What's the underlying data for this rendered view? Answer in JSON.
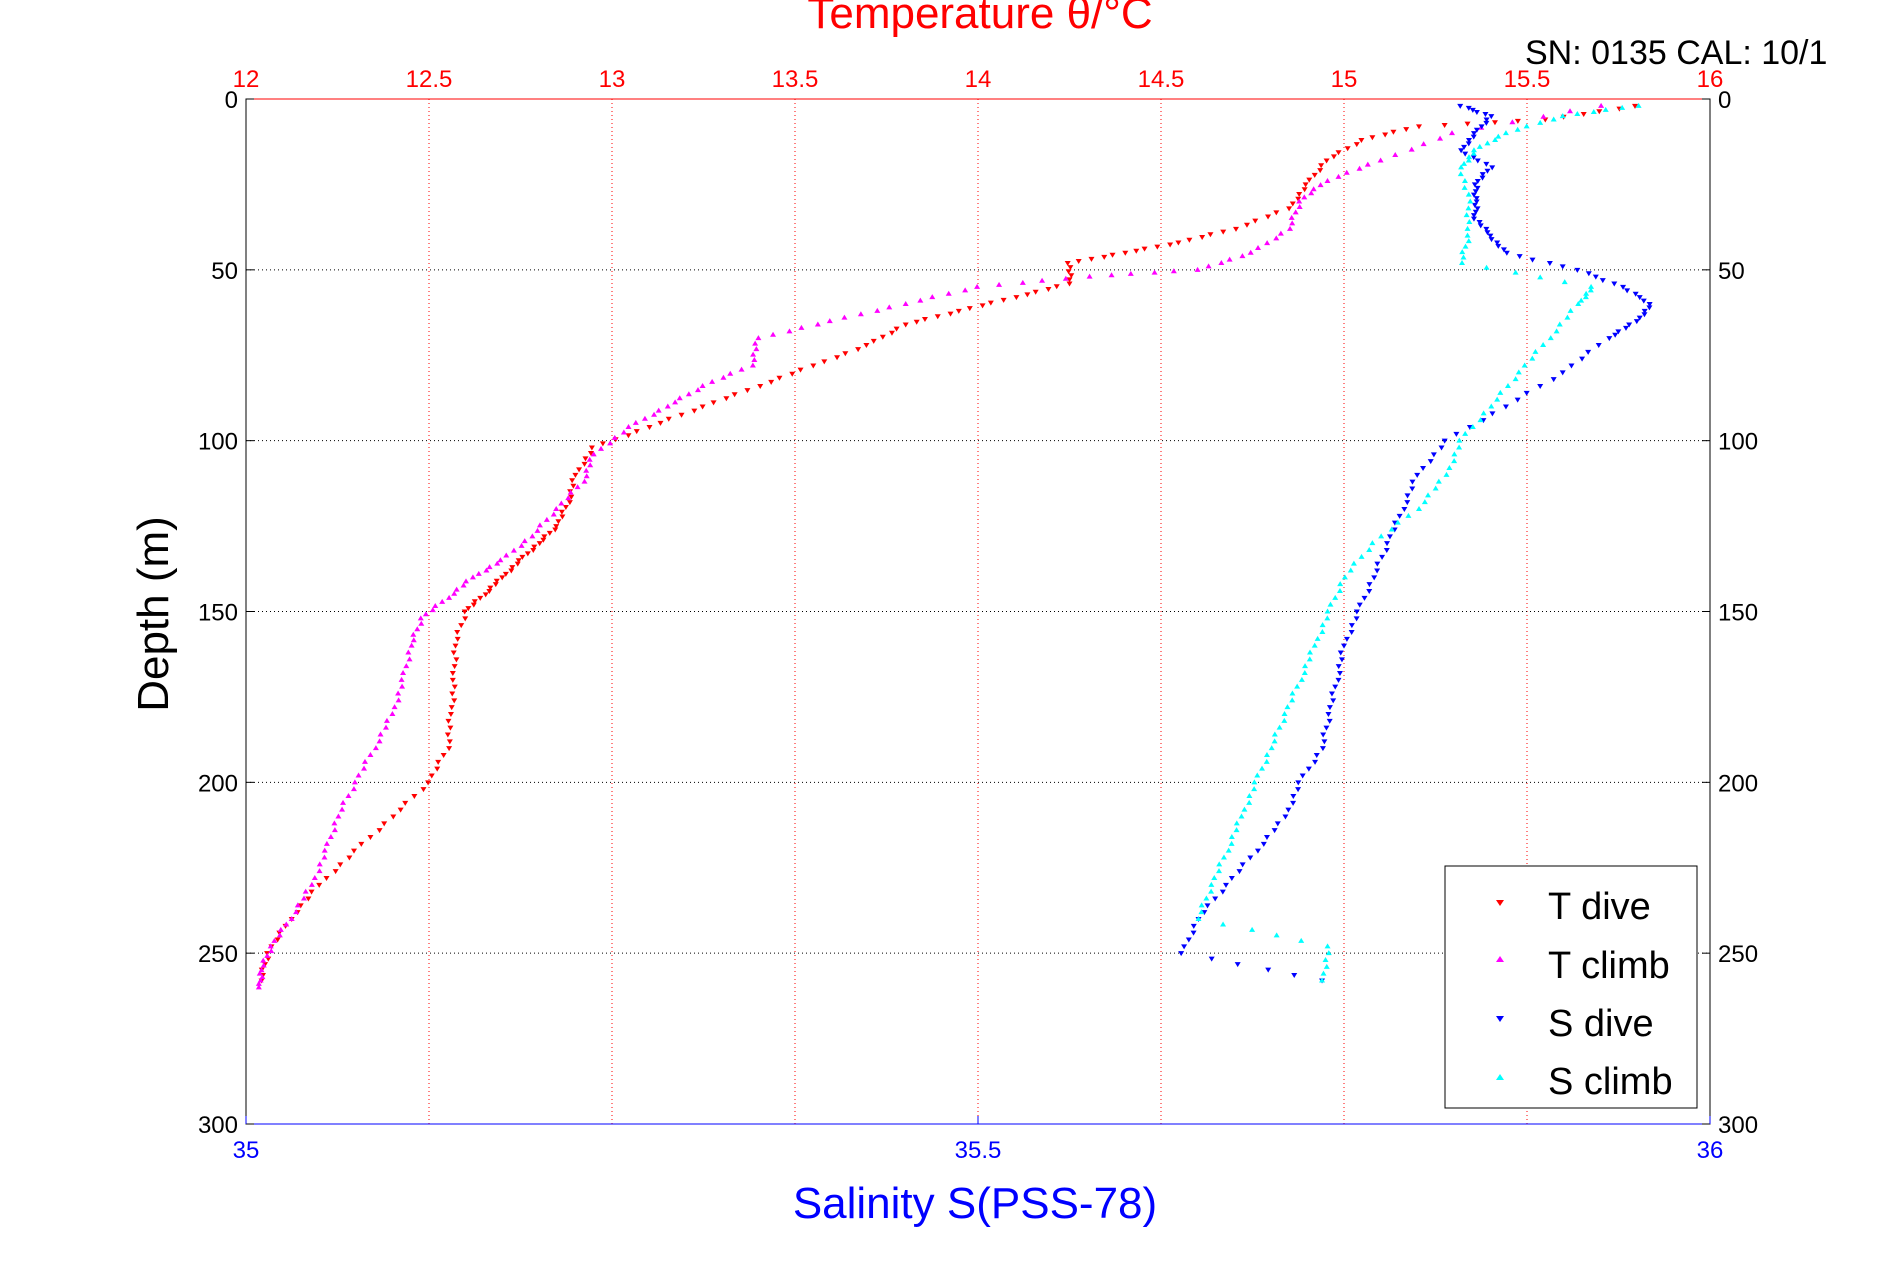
{
  "header": {
    "title": "Temperature θ/°C",
    "serial": "SN: 0135  CAL: 10/1"
  },
  "chart_data": {
    "type": "scatter",
    "title": "Temperature θ/°C",
    "top_axis": {
      "label": "Temperature θ/°C",
      "range": [
        12,
        16
      ],
      "ticks": [
        12,
        12.5,
        13,
        13.5,
        14,
        14.5,
        15,
        15.5,
        16
      ],
      "color": "#ff0000"
    },
    "bottom_axis": {
      "label": "Salinity S(PSS-78)",
      "range": [
        35,
        36
      ],
      "ticks": [
        35,
        35.5,
        36
      ],
      "color": "#0000ff"
    },
    "y_axis": {
      "label": "Depth (m)",
      "range": [
        0,
        300
      ],
      "reversed": true,
      "ticks": [
        0,
        50,
        100,
        150,
        200,
        250,
        300
      ]
    },
    "grid": true,
    "legend_position": "bottom-right",
    "series": [
      {
        "name": "T dive",
        "axis": "temperature",
        "color": "#ff0000",
        "marker": "triangle-down",
        "points": [
          [
            15.8,
            2
          ],
          [
            15.55,
            6
          ],
          [
            15.2,
            8
          ],
          [
            15.05,
            12
          ],
          [
            14.95,
            18
          ],
          [
            14.9,
            25
          ],
          [
            14.85,
            32
          ],
          [
            14.7,
            38
          ],
          [
            14.55,
            42
          ],
          [
            14.4,
            45
          ],
          [
            14.25,
            48
          ],
          [
            14.25,
            54
          ],
          [
            14.1,
            58
          ],
          [
            13.95,
            62
          ],
          [
            13.8,
            66
          ],
          [
            13.7,
            72
          ],
          [
            13.55,
            78
          ],
          [
            13.4,
            84
          ],
          [
            13.25,
            90
          ],
          [
            13.1,
            96
          ],
          [
            12.95,
            102
          ],
          [
            12.9,
            110
          ],
          [
            12.88,
            118
          ],
          [
            12.85,
            125
          ],
          [
            12.8,
            130
          ],
          [
            12.75,
            135
          ],
          [
            12.7,
            140
          ],
          [
            12.65,
            145
          ],
          [
            12.6,
            150
          ],
          [
            12.57,
            160
          ],
          [
            12.57,
            170
          ],
          [
            12.56,
            180
          ],
          [
            12.55,
            190
          ],
          [
            12.5,
            200
          ],
          [
            12.4,
            210
          ],
          [
            12.3,
            220
          ],
          [
            12.2,
            230
          ],
          [
            12.12,
            240
          ],
          [
            12.06,
            250
          ],
          [
            12.04,
            258
          ]
        ]
      },
      {
        "name": "T climb",
        "axis": "temperature",
        "color": "#ff00ff",
        "marker": "triangle-up",
        "points": [
          [
            15.7,
            2
          ],
          [
            15.3,
            10
          ],
          [
            15.1,
            18
          ],
          [
            14.95,
            24
          ],
          [
            14.88,
            30
          ],
          [
            14.85,
            38
          ],
          [
            14.75,
            45
          ],
          [
            14.6,
            50
          ],
          [
            14.3,
            52
          ],
          [
            14.0,
            55
          ],
          [
            13.8,
            60
          ],
          [
            13.6,
            65
          ],
          [
            13.4,
            70
          ],
          [
            13.38,
            78
          ],
          [
            13.25,
            84
          ],
          [
            13.15,
            90
          ],
          [
            13.05,
            96
          ],
          [
            12.95,
            104
          ],
          [
            12.92,
            112
          ],
          [
            12.85,
            120
          ],
          [
            12.78,
            128
          ],
          [
            12.7,
            135
          ],
          [
            12.62,
            140
          ],
          [
            12.55,
            146
          ],
          [
            12.48,
            152
          ],
          [
            12.45,
            160
          ],
          [
            12.43,
            170
          ],
          [
            12.4,
            180
          ],
          [
            12.35,
            190
          ],
          [
            12.3,
            200
          ],
          [
            12.25,
            210
          ],
          [
            12.22,
            220
          ],
          [
            12.18,
            230
          ],
          [
            12.12,
            240
          ],
          [
            12.07,
            248
          ],
          [
            12.04,
            255
          ],
          [
            12.04,
            260
          ]
        ]
      },
      {
        "name": "S dive",
        "axis": "salinity",
        "color": "#0000ff",
        "marker": "triangle-down",
        "points": [
          [
            35.83,
            2
          ],
          [
            35.85,
            5
          ],
          [
            35.84,
            10
          ],
          [
            35.83,
            15
          ],
          [
            35.85,
            20
          ],
          [
            35.84,
            25
          ],
          [
            35.84,
            30
          ],
          [
            35.84,
            35
          ],
          [
            35.85,
            40
          ],
          [
            35.86,
            45
          ],
          [
            35.91,
            50
          ],
          [
            35.94,
            55
          ],
          [
            35.96,
            60
          ],
          [
            35.95,
            65
          ],
          [
            35.93,
            70
          ],
          [
            35.9,
            80
          ],
          [
            35.86,
            90
          ],
          [
            35.82,
            100
          ],
          [
            35.8,
            110
          ],
          [
            35.79,
            120
          ],
          [
            35.78,
            130
          ],
          [
            35.77,
            140
          ],
          [
            35.76,
            150
          ],
          [
            35.75,
            160
          ],
          [
            35.745,
            170
          ],
          [
            35.74,
            180
          ],
          [
            35.735,
            190
          ],
          [
            35.72,
            200
          ],
          [
            35.71,
            210
          ],
          [
            35.69,
            220
          ],
          [
            35.67,
            230
          ],
          [
            35.65,
            240
          ],
          [
            35.64,
            250
          ],
          [
            35.735,
            258
          ]
        ]
      },
      {
        "name": "S climb",
        "axis": "salinity",
        "color": "#00ffff",
        "marker": "triangle-up",
        "points": [
          [
            35.95,
            2
          ],
          [
            35.9,
            5
          ],
          [
            35.86,
            10
          ],
          [
            35.84,
            15
          ],
          [
            35.83,
            20
          ],
          [
            35.835,
            30
          ],
          [
            35.835,
            40
          ],
          [
            35.83,
            48
          ],
          [
            35.92,
            55
          ],
          [
            35.91,
            60
          ],
          [
            35.89,
            70
          ],
          [
            35.87,
            80
          ],
          [
            35.85,
            90
          ],
          [
            35.83,
            100
          ],
          [
            35.82,
            110
          ],
          [
            35.8,
            120
          ],
          [
            35.77,
            130
          ],
          [
            35.75,
            140
          ],
          [
            35.74,
            150
          ],
          [
            35.73,
            160
          ],
          [
            35.72,
            170
          ],
          [
            35.71,
            180
          ],
          [
            35.7,
            190
          ],
          [
            35.69,
            200
          ],
          [
            35.68,
            210
          ],
          [
            35.67,
            220
          ],
          [
            35.66,
            230
          ],
          [
            35.65,
            240
          ],
          [
            35.74,
            248
          ],
          [
            35.735,
            258
          ]
        ]
      }
    ]
  }
}
